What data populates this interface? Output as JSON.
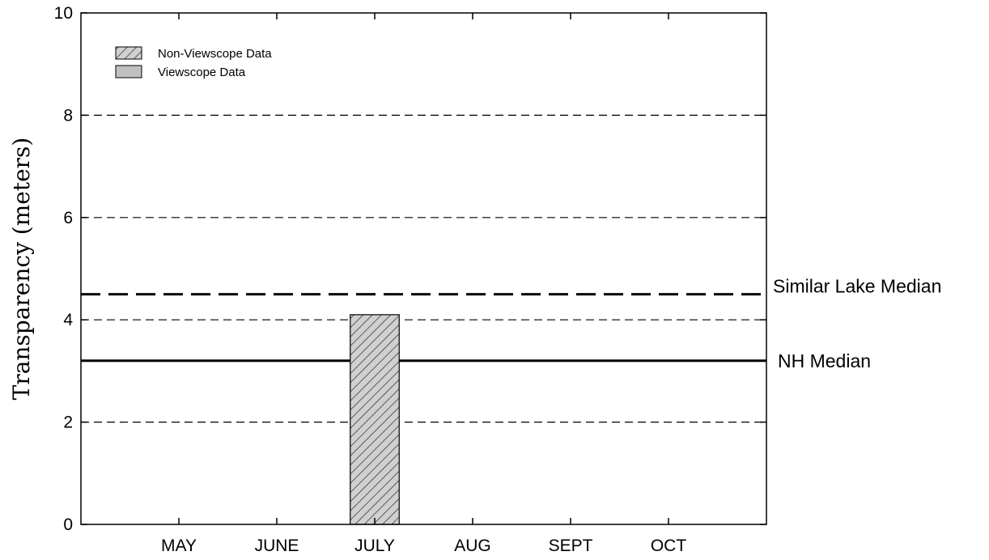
{
  "chart_data": {
    "type": "bar",
    "ylabel": "Transparency (meters)",
    "xlabel": "",
    "ylim": [
      0,
      10
    ],
    "yticks": [
      0,
      2,
      4,
      6,
      8,
      10
    ],
    "grid": "dashed horizontal at 2, 4, 6, 8",
    "categories": [
      "MAY",
      "JUNE",
      "JULY",
      "AUG",
      "SEPT",
      "OCT"
    ],
    "series": [
      {
        "name": "Non-Viewscope Data",
        "style": "hatched",
        "color": "#d0d0d0",
        "values": [
          null,
          null,
          4.1,
          null,
          null,
          null
        ]
      },
      {
        "name": "Viewscope Data",
        "style": "solid",
        "color": "#c0c0c0",
        "values": [
          null,
          null,
          null,
          null,
          null,
          null
        ]
      }
    ],
    "reference_lines": [
      {
        "label": "Similar Lake Median",
        "value": 4.5,
        "style": "dashed"
      },
      {
        "label": "NH Median",
        "value": 3.2,
        "style": "solid"
      }
    ],
    "legend_position": "top-left"
  }
}
